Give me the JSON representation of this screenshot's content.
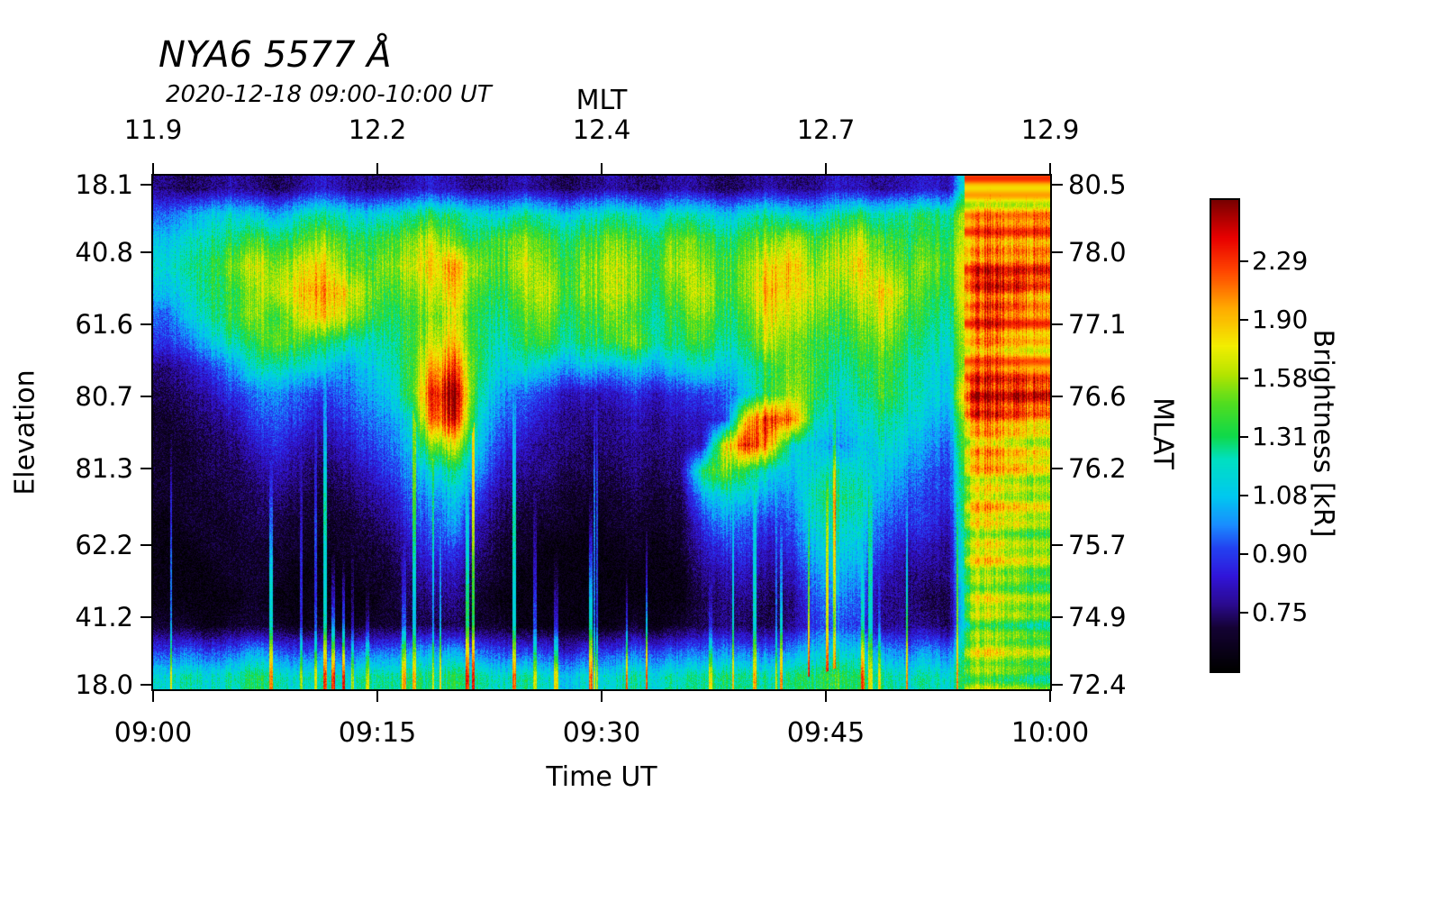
{
  "chart_data": {
    "type": "heatmap",
    "title": "NYA6 5577 Å",
    "subtitle": "2020-12-18 09:00-10:00 UT",
    "x_axis_bottom": {
      "label": "Time UT",
      "ticks": [
        "09:00",
        "09:15",
        "09:30",
        "09:45",
        "10:00"
      ]
    },
    "x_axis_top": {
      "label": "MLT",
      "ticks": [
        "11.9",
        "12.2",
        "12.4",
        "12.7",
        "12.9"
      ]
    },
    "y_axis_left": {
      "label": "Elevation",
      "ticks": [
        "18.1",
        "40.8",
        "61.6",
        "80.7",
        "81.3",
        "62.2",
        "41.2",
        "18.0"
      ]
    },
    "y_axis_right": {
      "label": "MLAT",
      "ticks": [
        "80.5",
        "78.0",
        "77.1",
        "76.6",
        "76.2",
        "75.7",
        "74.9",
        "72.4"
      ]
    },
    "colorbar": {
      "label": "Brightness [kR]",
      "ticks": [
        "2.29",
        "1.90",
        "1.58",
        "1.31",
        "1.08",
        "0.90",
        "0.75"
      ]
    },
    "colormap_stops": [
      [
        0.0,
        "#000000"
      ],
      [
        0.09,
        "#140233"
      ],
      [
        0.14,
        "#2a0a8c"
      ],
      [
        0.2,
        "#3114d9"
      ],
      [
        0.26,
        "#2341f0"
      ],
      [
        0.31,
        "#1a8cff"
      ],
      [
        0.37,
        "#00c8f0"
      ],
      [
        0.45,
        "#00e0c0"
      ],
      [
        0.5,
        "#10d948"
      ],
      [
        0.57,
        "#52dd1f"
      ],
      [
        0.63,
        "#b4e400"
      ],
      [
        0.69,
        "#f2ee00"
      ],
      [
        0.77,
        "#ffaa00"
      ],
      [
        0.85,
        "#ff4400"
      ],
      [
        0.92,
        "#e80000"
      ],
      [
        1.0,
        "#7a0000"
      ]
    ],
    "grid_description": "Normalized 5577A brightness; 20 rows = elevation scan top(18.1)->bottom(18.0), 40 cols = 09:00->10:00 UT",
    "grid": [
      [
        0.14,
        0.1,
        0.13,
        0.17,
        0.13,
        0.1,
        0.14,
        0.2,
        0.16,
        0.13,
        0.14,
        0.17,
        0.2,
        0.16,
        0.13,
        0.14,
        0.17,
        0.13,
        0.1,
        0.14,
        0.17,
        0.13,
        0.13,
        0.17,
        0.14,
        0.1,
        0.13,
        0.17,
        0.13,
        0.14,
        0.2,
        0.17,
        0.14,
        0.17,
        0.2,
        0.17,
        0.6,
        0.65,
        0.6,
        0.62
      ],
      [
        0.28,
        0.33,
        0.38,
        0.42,
        0.38,
        0.33,
        0.42,
        0.46,
        0.42,
        0.38,
        0.42,
        0.46,
        0.5,
        0.46,
        0.42,
        0.38,
        0.46,
        0.42,
        0.38,
        0.42,
        0.46,
        0.42,
        0.38,
        0.46,
        0.42,
        0.38,
        0.42,
        0.46,
        0.42,
        0.38,
        0.46,
        0.5,
        0.42,
        0.46,
        0.5,
        0.46,
        0.78,
        0.8,
        0.76,
        0.8
      ],
      [
        0.38,
        0.42,
        0.46,
        0.5,
        0.54,
        0.5,
        0.54,
        0.6,
        0.54,
        0.5,
        0.54,
        0.6,
        0.66,
        0.54,
        0.5,
        0.54,
        0.6,
        0.54,
        0.5,
        0.54,
        0.6,
        0.54,
        0.5,
        0.6,
        0.54,
        0.5,
        0.54,
        0.6,
        0.66,
        0.54,
        0.6,
        0.66,
        0.54,
        0.5,
        0.54,
        0.5,
        0.8,
        0.85,
        0.8,
        0.82
      ],
      [
        0.42,
        0.46,
        0.5,
        0.6,
        0.66,
        0.6,
        0.66,
        0.72,
        0.6,
        0.54,
        0.6,
        0.66,
        0.72,
        0.76,
        0.6,
        0.54,
        0.66,
        0.6,
        0.54,
        0.6,
        0.66,
        0.6,
        0.54,
        0.66,
        0.6,
        0.54,
        0.6,
        0.72,
        0.76,
        0.6,
        0.66,
        0.72,
        0.6,
        0.54,
        0.6,
        0.54,
        0.85,
        0.88,
        0.84,
        0.86
      ],
      [
        0.38,
        0.42,
        0.5,
        0.54,
        0.6,
        0.66,
        0.72,
        0.78,
        0.72,
        0.6,
        0.54,
        0.6,
        0.66,
        0.72,
        0.54,
        0.5,
        0.6,
        0.66,
        0.54,
        0.6,
        0.66,
        0.6,
        0.5,
        0.6,
        0.66,
        0.54,
        0.6,
        0.78,
        0.72,
        0.66,
        0.6,
        0.66,
        0.72,
        0.6,
        0.54,
        0.5,
        0.88,
        0.95,
        0.9,
        0.85
      ],
      [
        0.28,
        0.38,
        0.46,
        0.54,
        0.6,
        0.54,
        0.66,
        0.72,
        0.66,
        0.54,
        0.5,
        0.54,
        0.6,
        0.66,
        0.5,
        0.46,
        0.54,
        0.6,
        0.5,
        0.54,
        0.6,
        0.54,
        0.46,
        0.54,
        0.6,
        0.5,
        0.54,
        0.72,
        0.66,
        0.6,
        0.54,
        0.6,
        0.66,
        0.54,
        0.5,
        0.46,
        0.82,
        0.88,
        0.8,
        0.78
      ],
      [
        0.24,
        0.28,
        0.38,
        0.46,
        0.5,
        0.6,
        0.54,
        0.5,
        0.46,
        0.42,
        0.46,
        0.54,
        0.66,
        0.72,
        0.5,
        0.42,
        0.5,
        0.54,
        0.46,
        0.5,
        0.54,
        0.6,
        0.46,
        0.5,
        0.54,
        0.46,
        0.5,
        0.66,
        0.6,
        0.54,
        0.5,
        0.54,
        0.6,
        0.5,
        0.46,
        0.42,
        0.8,
        0.85,
        0.76,
        0.76
      ],
      [
        0.13,
        0.17,
        0.24,
        0.33,
        0.42,
        0.46,
        0.42,
        0.38,
        0.33,
        0.38,
        0.42,
        0.54,
        0.78,
        0.85,
        0.5,
        0.38,
        0.42,
        0.38,
        0.33,
        0.38,
        0.33,
        0.38,
        0.33,
        0.38,
        0.42,
        0.38,
        0.42,
        0.54,
        0.6,
        0.54,
        0.46,
        0.5,
        0.54,
        0.46,
        0.42,
        0.38,
        0.8,
        0.82,
        0.76,
        0.72
      ],
      [
        0.1,
        0.13,
        0.17,
        0.24,
        0.28,
        0.33,
        0.28,
        0.24,
        0.28,
        0.33,
        0.38,
        0.54,
        0.9,
        0.97,
        0.46,
        0.33,
        0.28,
        0.24,
        0.18,
        0.18,
        0.18,
        0.24,
        0.18,
        0.24,
        0.24,
        0.28,
        0.38,
        0.54,
        0.64,
        0.54,
        0.42,
        0.46,
        0.54,
        0.46,
        0.42,
        0.38,
        1.0,
        1.0,
        1.0,
        1.0
      ],
      [
        0.07,
        0.1,
        0.13,
        0.17,
        0.24,
        0.28,
        0.24,
        0.18,
        0.24,
        0.28,
        0.33,
        0.42,
        0.85,
        0.9,
        0.42,
        0.28,
        0.24,
        0.18,
        0.14,
        0.14,
        0.14,
        0.18,
        0.14,
        0.18,
        0.18,
        0.24,
        0.75,
        0.9,
        0.85,
        0.46,
        0.38,
        0.42,
        0.46,
        0.42,
        0.38,
        0.33,
        0.8,
        0.82,
        0.76,
        0.72
      ],
      [
        0.07,
        0.07,
        0.1,
        0.13,
        0.18,
        0.24,
        0.18,
        0.14,
        0.18,
        0.24,
        0.28,
        0.38,
        0.6,
        0.66,
        0.38,
        0.24,
        0.18,
        0.14,
        0.14,
        0.1,
        0.14,
        0.14,
        0.14,
        0.14,
        0.18,
        0.7,
        0.9,
        0.78,
        0.42,
        0.38,
        0.33,
        0.38,
        0.42,
        0.38,
        0.33,
        0.28,
        0.76,
        0.8,
        0.72,
        0.7
      ],
      [
        0.07,
        0.07,
        0.1,
        0.1,
        0.14,
        0.18,
        0.14,
        0.1,
        0.14,
        0.18,
        0.24,
        0.33,
        0.42,
        0.46,
        0.33,
        0.18,
        0.14,
        0.14,
        0.1,
        0.1,
        0.1,
        0.14,
        0.1,
        0.14,
        0.5,
        0.6,
        0.5,
        0.42,
        0.38,
        0.42,
        0.46,
        0.42,
        0.38,
        0.33,
        0.28,
        0.24,
        0.72,
        0.74,
        0.7,
        0.66
      ],
      [
        0.07,
        0.07,
        0.07,
        0.1,
        0.1,
        0.14,
        0.1,
        0.07,
        0.1,
        0.14,
        0.18,
        0.28,
        0.33,
        0.38,
        0.24,
        0.14,
        0.1,
        0.1,
        0.07,
        0.07,
        0.07,
        0.1,
        0.07,
        0.1,
        0.33,
        0.42,
        0.38,
        0.33,
        0.33,
        0.46,
        0.5,
        0.46,
        0.33,
        0.28,
        0.24,
        0.24,
        0.7,
        0.74,
        0.66,
        0.66
      ],
      [
        0.03,
        0.07,
        0.07,
        0.07,
        0.1,
        0.1,
        0.07,
        0.07,
        0.07,
        0.1,
        0.14,
        0.24,
        0.28,
        0.33,
        0.18,
        0.1,
        0.07,
        0.07,
        0.07,
        0.03,
        0.07,
        0.07,
        0.07,
        0.07,
        0.24,
        0.33,
        0.28,
        0.24,
        0.28,
        0.42,
        0.46,
        0.42,
        0.28,
        0.24,
        0.24,
        0.18,
        0.7,
        0.7,
        0.66,
        0.62
      ],
      [
        0.03,
        0.03,
        0.07,
        0.07,
        0.07,
        0.07,
        0.07,
        0.03,
        0.07,
        0.07,
        0.1,
        0.18,
        0.24,
        0.24,
        0.14,
        0.07,
        0.07,
        0.03,
        0.03,
        0.03,
        0.03,
        0.07,
        0.03,
        0.07,
        0.18,
        0.24,
        0.24,
        0.18,
        0.24,
        0.38,
        0.42,
        0.38,
        0.24,
        0.18,
        0.18,
        0.14,
        0.66,
        0.7,
        0.62,
        0.62
      ],
      [
        0.03,
        0.03,
        0.03,
        0.07,
        0.07,
        0.07,
        0.03,
        0.03,
        0.03,
        0.07,
        0.07,
        0.14,
        0.18,
        0.18,
        0.1,
        0.07,
        0.03,
        0.03,
        0.03,
        0.03,
        0.03,
        0.03,
        0.03,
        0.03,
        0.14,
        0.18,
        0.18,
        0.14,
        0.18,
        0.33,
        0.38,
        0.33,
        0.18,
        0.14,
        0.14,
        0.14,
        0.66,
        0.66,
        0.62,
        0.58
      ],
      [
        0.03,
        0.03,
        0.03,
        0.03,
        0.07,
        0.03,
        0.03,
        0.03,
        0.03,
        0.03,
        0.07,
        0.1,
        0.14,
        0.14,
        0.07,
        0.03,
        0.03,
        0.03,
        0.03,
        0.03,
        0.03,
        0.03,
        0.03,
        0.03,
        0.1,
        0.14,
        0.14,
        0.1,
        0.14,
        0.28,
        0.33,
        0.28,
        0.14,
        0.14,
        0.1,
        0.1,
        0.62,
        0.66,
        0.58,
        0.58
      ],
      [
        0.07,
        0.07,
        0.03,
        0.07,
        0.07,
        0.07,
        0.03,
        0.07,
        0.03,
        0.07,
        0.07,
        0.1,
        0.1,
        0.1,
        0.07,
        0.07,
        0.03,
        0.03,
        0.03,
        0.03,
        0.03,
        0.07,
        0.03,
        0.07,
        0.1,
        0.14,
        0.1,
        0.1,
        0.14,
        0.24,
        0.28,
        0.24,
        0.14,
        0.14,
        0.14,
        0.1,
        0.62,
        0.62,
        0.58,
        0.54
      ],
      [
        0.24,
        0.28,
        0.24,
        0.28,
        0.33,
        0.28,
        0.24,
        0.28,
        0.24,
        0.28,
        0.28,
        0.33,
        0.33,
        0.33,
        0.28,
        0.24,
        0.24,
        0.24,
        0.18,
        0.24,
        0.24,
        0.28,
        0.24,
        0.28,
        0.28,
        0.33,
        0.28,
        0.28,
        0.33,
        0.38,
        0.42,
        0.38,
        0.33,
        0.28,
        0.33,
        0.28,
        0.62,
        0.66,
        0.58,
        0.58
      ],
      [
        0.42,
        0.46,
        0.42,
        0.46,
        0.5,
        0.46,
        0.42,
        0.46,
        0.42,
        0.46,
        0.46,
        0.5,
        0.46,
        0.5,
        0.46,
        0.42,
        0.46,
        0.42,
        0.38,
        0.42,
        0.42,
        0.46,
        0.42,
        0.46,
        0.46,
        0.5,
        0.46,
        0.46,
        0.5,
        0.5,
        0.54,
        0.5,
        0.46,
        0.42,
        0.46,
        0.42,
        0.62,
        0.62,
        0.58,
        0.54
      ]
    ]
  }
}
